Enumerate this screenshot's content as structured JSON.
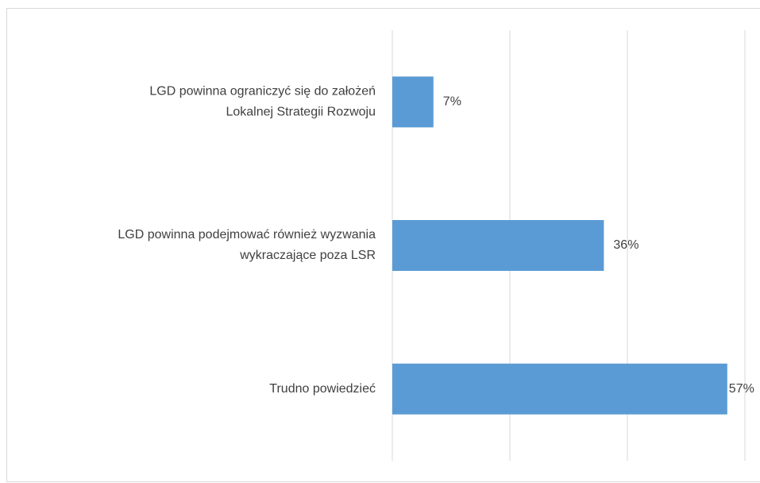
{
  "chart_data": {
    "type": "barh",
    "categories": [
      [
        "LGD powinna ograniczyć się do założeń",
        "Lokalnej Strategii Rozwoju"
      ],
      [
        "LGD powinna podejmować również wyzwania",
        "wykraczające poza LSR"
      ],
      [
        "Trudno powiedzieć"
      ]
    ],
    "values": [
      7,
      36,
      57
    ],
    "value_labels": [
      "7%",
      "36%",
      "57%"
    ],
    "color": "#5b9bd5",
    "xlim": [
      0,
      60
    ],
    "xticks": [
      0,
      20,
      40,
      60
    ],
    "grid": true
  }
}
